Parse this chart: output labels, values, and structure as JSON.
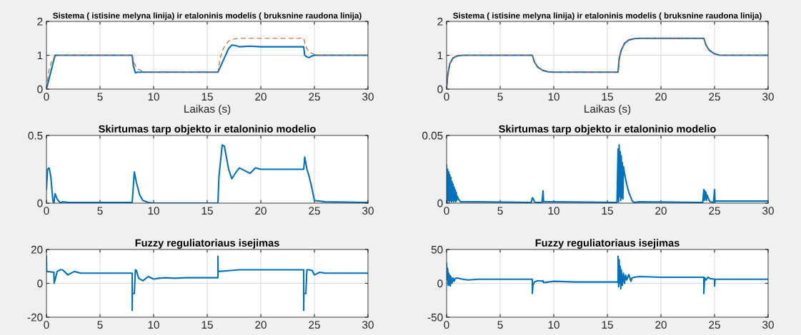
{
  "chart_data": [
    {
      "type": "line",
      "title": "Sistema ( istisine melyna linija) ir etaloninis modelis ( bruksnine raudona linija)",
      "xlabel": "Laikas (s)",
      "xlim": [
        0,
        30
      ],
      "xticks": [
        0,
        5,
        10,
        15,
        20,
        25,
        30
      ],
      "ylim": [
        0,
        2
      ],
      "yticks": [
        0,
        1,
        2
      ],
      "grid": true,
      "series": [
        {
          "color": "#0072bd",
          "line_style": "solid",
          "x": [
            0,
            0.8,
            1,
            8,
            8.1,
            8.3,
            8.5,
            16,
            16.5,
            17,
            17.3,
            17.6,
            18,
            18.5,
            19,
            20,
            24,
            24.1,
            24.3,
            24.5,
            24.8,
            25,
            30
          ],
          "values": [
            0,
            1,
            1,
            1,
            0.7,
            0.48,
            0.5,
            0.5,
            0.85,
            1.2,
            1.3,
            1.29,
            1.25,
            1.26,
            1.27,
            1.25,
            1.25,
            1.0,
            0.95,
            0.93,
            0.98,
            1.0,
            1.0
          ]
        },
        {
          "color": "#d95319",
          "line_style": "dashed",
          "x": [
            0,
            0.2,
            0.5,
            0.8,
            1,
            8,
            8.2,
            8.5,
            9,
            9.5,
            16,
            16.2,
            16.5,
            17,
            17.5,
            18,
            24,
            24.2,
            24.5,
            25,
            25.5,
            30
          ],
          "values": [
            0,
            0.5,
            0.85,
            0.96,
            1,
            1,
            0.75,
            0.6,
            0.52,
            0.5,
            0.5,
            0.9,
            1.2,
            1.42,
            1.48,
            1.5,
            1.5,
            1.25,
            1.1,
            1.02,
            1.0,
            1.0
          ]
        }
      ]
    },
    {
      "type": "line",
      "title": "Sistema ( istisine melyna linija) ir etaloninis modelis ( bruksnine raudona linija)",
      "xlabel": "Laikas (s)",
      "xlim": [
        0,
        30
      ],
      "xticks": [
        0,
        5,
        10,
        15,
        20,
        25,
        30
      ],
      "ylim": [
        0,
        2
      ],
      "yticks": [
        0,
        1,
        2
      ],
      "grid": true,
      "series": [
        {
          "color": "#0072bd",
          "line_style": "solid",
          "x": [
            0,
            0.1,
            0.3,
            0.6,
            1,
            1.5,
            8,
            8.2,
            8.5,
            9,
            9.5,
            10,
            16,
            16.1,
            16.3,
            16.6,
            17,
            17.5,
            18,
            24,
            24.2,
            24.5,
            25,
            25.5,
            30
          ],
          "values": [
            0,
            0.4,
            0.75,
            0.92,
            0.98,
            1,
            1,
            0.8,
            0.65,
            0.55,
            0.51,
            0.5,
            0.5,
            0.9,
            1.15,
            1.35,
            1.45,
            1.49,
            1.5,
            1.5,
            1.3,
            1.15,
            1.04,
            1.0,
            1.0
          ]
        },
        {
          "color": "#d95319",
          "line_style": "dashed",
          "x": [
            0,
            0.1,
            0.3,
            0.6,
            1,
            1.5,
            8,
            8.2,
            8.5,
            9,
            9.5,
            10,
            16,
            16.1,
            16.3,
            16.6,
            17,
            17.5,
            18,
            24,
            24.2,
            24.5,
            25,
            25.5,
            30
          ],
          "values": [
            0,
            0.4,
            0.75,
            0.92,
            0.98,
            1,
            1,
            0.8,
            0.65,
            0.55,
            0.51,
            0.5,
            0.5,
            0.9,
            1.15,
            1.35,
            1.45,
            1.49,
            1.5,
            1.5,
            1.3,
            1.15,
            1.04,
            1.0,
            1.0
          ]
        }
      ]
    },
    {
      "type": "line",
      "title": "Skirtumas tarp objekto ir etaloninio modelio",
      "xlim": [
        0,
        30
      ],
      "xticks": [
        0,
        5,
        10,
        15,
        20,
        25,
        30
      ],
      "ylim": [
        0,
        0.5
      ],
      "yticks": [
        0,
        0.5
      ],
      "grid": true,
      "series": [
        {
          "color": "#0072bd",
          "line_style": "solid",
          "x": [
            0,
            0.1,
            0.25,
            0.4,
            0.6,
            0.7,
            0.8,
            1.0,
            1.3,
            1.5,
            2,
            8,
            8.2,
            8.4,
            8.7,
            9,
            9.5,
            10,
            16,
            16.1,
            16.4,
            16.6,
            17,
            17.3,
            17.7,
            18,
            18.5,
            19,
            19.5,
            20,
            21,
            22,
            24,
            24.1,
            24.3,
            24.5,
            24.8,
            25,
            26,
            30
          ],
          "values": [
            0.1,
            0.25,
            0.26,
            0.2,
            0.02,
            0,
            0.07,
            0.03,
            0,
            0.01,
            0.005,
            0.005,
            0.23,
            0.15,
            0.06,
            0.02,
            0.005,
            0,
            0,
            0.2,
            0.43,
            0.42,
            0.25,
            0.18,
            0.23,
            0.26,
            0.24,
            0.22,
            0.26,
            0.25,
            0.25,
            0.25,
            0.25,
            0.34,
            0.25,
            0.2,
            0.1,
            0.02,
            0.01,
            0.005
          ]
        }
      ]
    },
    {
      "type": "line",
      "title": "Skirtumas tarp objekto ir etaloninio modelio",
      "xlim": [
        0,
        30
      ],
      "xticks": [
        0,
        5,
        10,
        15,
        20,
        25,
        30
      ],
      "ylim": [
        0,
        0.05
      ],
      "yticks": [
        0,
        0.05
      ],
      "grid": true,
      "series": [
        {
          "color": "#0072bd",
          "line_style": "solid",
          "x": [
            0,
            0.05,
            0.1,
            0.15,
            0.2,
            0.25,
            0.3,
            0.35,
            0.4,
            0.45,
            0.5,
            0.55,
            0.6,
            0.65,
            0.7,
            0.75,
            0.8,
            0.85,
            0.9,
            0.95,
            1.0,
            1.1,
            1.2,
            1.3,
            3,
            7.9,
            8.0,
            8.1,
            8.2,
            8.3,
            8.9,
            9.0,
            9.05,
            9.1,
            10,
            15.9,
            16.0,
            16.05,
            16.1,
            16.15,
            16.2,
            16.25,
            16.3,
            16.35,
            16.4,
            16.45,
            16.5,
            16.6,
            16.7,
            16.8,
            16.9,
            17.0,
            17.1,
            17.2,
            17.3,
            17.4,
            17.5,
            18,
            23.9,
            24.0,
            24.05,
            24.1,
            24.15,
            24.2,
            24.25,
            24.3,
            24.4,
            24.5,
            24.6,
            24.9,
            25.0,
            25.05,
            25.1,
            26,
            30
          ],
          "values": [
            0.028,
            0,
            0.025,
            0.002,
            0.023,
            0.001,
            0.021,
            0.002,
            0.019,
            0.001,
            0.016,
            0.002,
            0.014,
            0.001,
            0.012,
            0.002,
            0.01,
            0.001,
            0.008,
            0.002,
            0.005,
            0.003,
            0.002,
            0.001,
            0.001,
            0.0005,
            0.004,
            0.003,
            0.001,
            0.0005,
            0.0005,
            0.009,
            0.001,
            0.001,
            0.001,
            0.0005,
            0.04,
            0.001,
            0.043,
            0.005,
            0.038,
            0.002,
            0.035,
            0.004,
            0.03,
            0.003,
            0.027,
            0.022,
            0.018,
            0.014,
            0.011,
            0.008,
            0.006,
            0.004,
            0.002,
            0.001,
            0.0005,
            0.001,
            0.0005,
            0.01,
            0.002,
            0.009,
            0.003,
            0.008,
            0.002,
            0.006,
            0.004,
            0.002,
            0.001,
            0.0005,
            0.01,
            0.001,
            0.0015,
            0.0015,
            0.0015
          ]
        }
      ]
    },
    {
      "type": "line",
      "title": "Fuzzy reguliatoriaus isejimas",
      "xlim": [
        0,
        30
      ],
      "xticks": [
        0,
        5,
        10,
        15,
        20,
        25,
        30
      ],
      "ylim": [
        -20,
        20
      ],
      "yticks": [
        -20,
        0,
        20
      ],
      "grid": true,
      "series": [
        {
          "color": "#0072bd",
          "line_style": "solid",
          "x": [
            0,
            0.02,
            0.05,
            0.7,
            0.72,
            0.8,
            1.0,
            1.3,
            1.5,
            2,
            2.6,
            3.2,
            4,
            8,
            8.0,
            8.02,
            8.2,
            8.3,
            8.4,
            8.6,
            9,
            9.5,
            10,
            10.5,
            11,
            12,
            13,
            14,
            16,
            16.0,
            16.02,
            17,
            18,
            24,
            24.0,
            24.02,
            24.2,
            24.3,
            24.5,
            24.8,
            25,
            25.5,
            26,
            27,
            30
          ],
          "values": [
            16,
            7,
            7,
            6.5,
            0,
            2,
            7,
            8,
            8,
            5,
            7,
            6,
            6,
            6,
            -16,
            -6,
            -6,
            8,
            7.5,
            3,
            1.5,
            4,
            2.5,
            3,
            3.3,
            3,
            3.3,
            3.3,
            3.3,
            16,
            7,
            7.5,
            8,
            8,
            -16,
            -6,
            -6,
            8,
            8,
            7.5,
            5,
            6.5,
            6,
            6,
            6
          ]
        }
      ]
    },
    {
      "type": "line",
      "title": "Fuzzy reguliatoriaus isejimas",
      "xlim": [
        0,
        30
      ],
      "xticks": [
        0,
        5,
        10,
        15,
        20,
        25,
        30
      ],
      "ylim": [
        -50,
        50
      ],
      "yticks": [
        -50,
        0,
        50
      ],
      "grid": true,
      "series": [
        {
          "color": "#0072bd",
          "line_style": "solid",
          "x": [
            0,
            0.05,
            0.1,
            0.15,
            0.2,
            0.25,
            0.3,
            0.35,
            0.4,
            0.5,
            0.6,
            0.7,
            0.8,
            1.0,
            1.5,
            2,
            3,
            8,
            8.0,
            8.05,
            8.2,
            8.5,
            9,
            9.0,
            9.05,
            10,
            12,
            16,
            16.0,
            16.05,
            16.1,
            16.15,
            16.2,
            16.25,
            16.3,
            16.4,
            16.5,
            16.6,
            16.7,
            16.8,
            17,
            17.2,
            17.3,
            17.5,
            18,
            20,
            24,
            24.0,
            24.05,
            24.1,
            24.2,
            24.4,
            24.6,
            25,
            25.0,
            25.05,
            26,
            30
          ],
          "values": [
            30,
            5,
            22,
            -3,
            15,
            -2,
            12,
            -4,
            10,
            0,
            8,
            3,
            7,
            8,
            6,
            5,
            6,
            6,
            -15,
            -3,
            2,
            4,
            3,
            4,
            1,
            3,
            2,
            2,
            40,
            -5,
            35,
            0,
            25,
            -8,
            20,
            -3,
            15,
            0,
            12,
            5,
            13,
            3,
            8,
            9,
            10,
            9,
            9,
            -15,
            0,
            8,
            5,
            9,
            7,
            6,
            -4,
            6,
            6,
            6
          ]
        }
      ]
    }
  ]
}
